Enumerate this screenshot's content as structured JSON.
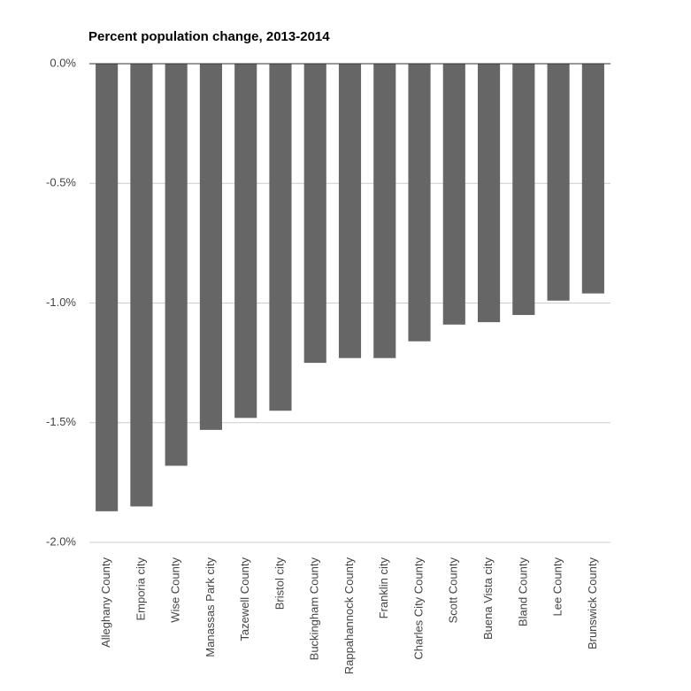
{
  "chart_data": {
    "type": "bar",
    "title": "Percent population change, 2013-2014",
    "categories": [
      "Alleghany County",
      "Emporia city",
      "Wise County",
      "Manassas Park city",
      "Tazewell County",
      "Bristol city",
      "Buckingham County",
      "Rappahannock County",
      "Franklin city",
      "Charles City County",
      "Scott County",
      "Buena Vista city",
      "Bland County",
      "Lee County",
      "Brunswick County"
    ],
    "values": [
      -1.87,
      -1.85,
      -1.68,
      -1.53,
      -1.48,
      -1.45,
      -1.25,
      -1.23,
      -1.23,
      -1.16,
      -1.09,
      -1.08,
      -1.05,
      -0.99,
      -0.96
    ],
    "color": "#666666",
    "ylim": [
      -2,
      0
    ],
    "yticks": [
      {
        "value": 0,
        "label": "0.0%"
      },
      {
        "value": -0.5,
        "label": "-0.5%"
      },
      {
        "value": -1,
        "label": "-1.0%"
      },
      {
        "value": -1.5,
        "label": "-1.5%"
      },
      {
        "value": -2,
        "label": "-2.0%"
      }
    ],
    "grid": true
  }
}
